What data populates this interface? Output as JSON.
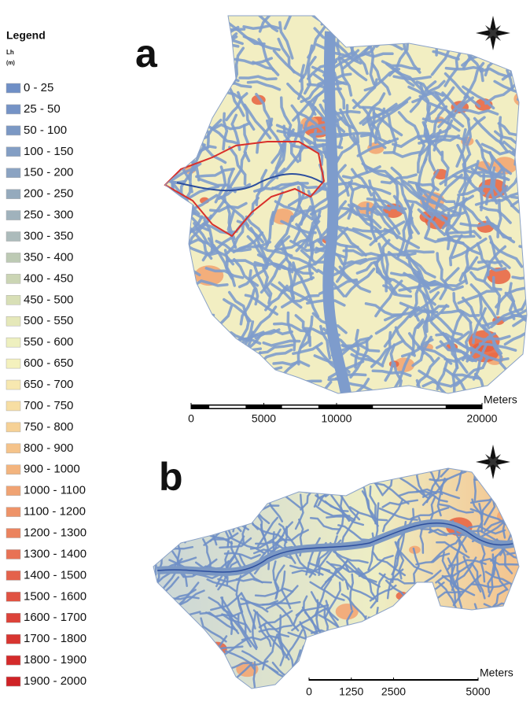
{
  "legend": {
    "title": "Legend",
    "field": "Lh",
    "unit": "(m)",
    "items": [
      {
        "label": "0 - 25",
        "color": "#6f8fc6"
      },
      {
        "label": "25 - 50",
        "color": "#7593c6"
      },
      {
        "label": "50 - 100",
        "color": "#7b98c4"
      },
      {
        "label": "100 - 150",
        "color": "#839ec4"
      },
      {
        "label": "150 - 200",
        "color": "#8ba3c2"
      },
      {
        "label": "200 - 250",
        "color": "#95aabd"
      },
      {
        "label": "250 - 300",
        "color": "#a0b2bc"
      },
      {
        "label": "300 - 350",
        "color": "#acbbbb"
      },
      {
        "label": "350 - 400",
        "color": "#bdcab4"
      },
      {
        "label": "400 - 450",
        "color": "#cbd5b4"
      },
      {
        "label": "450 - 500",
        "color": "#d8dfb6"
      },
      {
        "label": "500 - 550",
        "color": "#e5e8b9"
      },
      {
        "label": "550 - 600",
        "color": "#eef0bf"
      },
      {
        "label": "600 - 650",
        "color": "#f4f1bd"
      },
      {
        "label": "650 - 700",
        "color": "#f7e8b0"
      },
      {
        "label": "700 - 750",
        "color": "#f7dea3"
      },
      {
        "label": "750 - 800",
        "color": "#f6d196"
      },
      {
        "label": "800 - 900",
        "color": "#f5c38a"
      },
      {
        "label": "900 - 1000",
        "color": "#f3b47e"
      },
      {
        "label": "1000 - 1100",
        "color": "#f0a373"
      },
      {
        "label": "1100 - 1200",
        "color": "#ee9368"
      },
      {
        "label": "1200 - 1300",
        "color": "#eb835e"
      },
      {
        "label": "1300 - 1400",
        "color": "#e87255"
      },
      {
        "label": "1400 - 1500",
        "color": "#e4624b"
      },
      {
        "label": "1500 - 1600",
        "color": "#e05242"
      },
      {
        "label": "1600 - 1700",
        "color": "#dc4239"
      },
      {
        "label": "1700 - 1800",
        "color": "#d83530"
      },
      {
        "label": "1800 - 1900",
        "color": "#d42a2a"
      },
      {
        "label": "1900 - 2000",
        "color": "#cf2226"
      }
    ]
  },
  "panels": [
    {
      "label": "a",
      "scale": {
        "unit": "Meters",
        "ticks": [
          0,
          5000,
          10000,
          20000
        ]
      }
    },
    {
      "label": "b",
      "scale": {
        "unit": "Meters",
        "ticks": [
          0,
          1250,
          2500,
          5000
        ]
      }
    }
  ]
}
